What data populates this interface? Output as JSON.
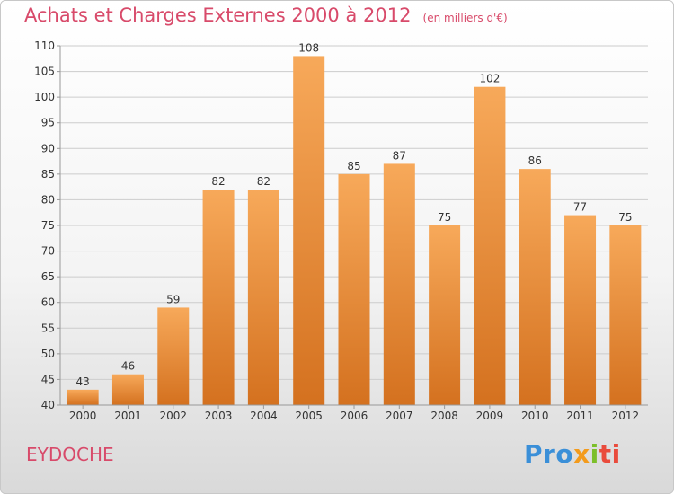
{
  "header": {
    "title": "Achats et Charges Externes 2000 à 2012",
    "unit": "(en milliers d'€)"
  },
  "commune": "EYDOCHE",
  "brand": {
    "name": "Proxiti",
    "parts": [
      "Pro",
      "x",
      "i",
      "ti"
    ]
  },
  "colors": {
    "title": "#d84a6a",
    "bar_top": "#f7a95a",
    "bar_bottom": "#d4711f",
    "axis": "#999999",
    "grid": "#cccccc"
  },
  "chart_data": {
    "type": "bar",
    "categories": [
      "2000",
      "2001",
      "2002",
      "2003",
      "2004",
      "2005",
      "2006",
      "2007",
      "2008",
      "2009",
      "2010",
      "2011",
      "2012"
    ],
    "values": [
      43,
      46,
      59,
      82,
      82,
      108,
      85,
      87,
      75,
      102,
      86,
      77,
      75
    ],
    "ylim": [
      40,
      110
    ],
    "yticks": [
      40,
      45,
      50,
      55,
      60,
      65,
      70,
      75,
      80,
      85,
      90,
      95,
      100,
      105,
      110
    ],
    "grid": true,
    "legend": "none"
  }
}
